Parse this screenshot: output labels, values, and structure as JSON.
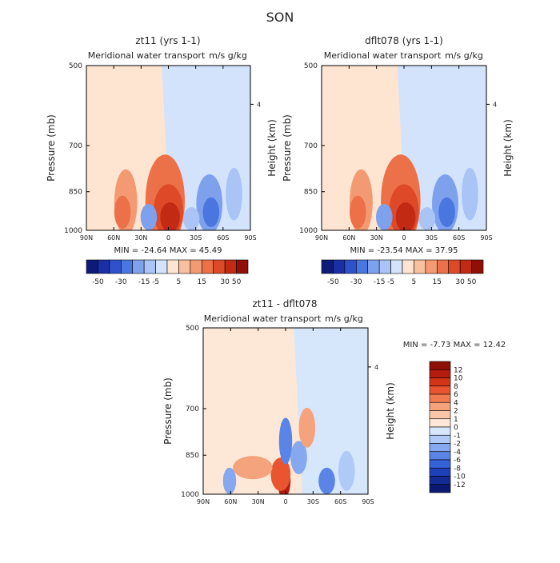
{
  "page_title": "SON",
  "chart_data": [
    {
      "type": "heatmap",
      "title": "zt11 (yrs 1-1)",
      "subtitle": "Meridional water transport",
      "units": "m/s g/kg",
      "xlabel": "",
      "ylabel": "Pressure (mb)",
      "ylabel_right": "Height (km)",
      "x_ticks": [
        "90N",
        "60N",
        "30N",
        "0",
        "30S",
        "60S",
        "90S"
      ],
      "y_ticks": [
        "500",
        "700",
        "850",
        "1000"
      ],
      "right_ticks": [
        "4"
      ],
      "ylim": [
        1000,
        500
      ],
      "stats": "MIN = -24.64   MAX =  45.49",
      "min": -24.64,
      "max": 45.49,
      "colorbar_labels": [
        "-50",
        "-30",
        "-15",
        "-5",
        "5",
        "15",
        "30",
        "50"
      ],
      "colorbar_colors": [
        "#0d1a78",
        "#1a2fa6",
        "#2f52cc",
        "#4a76e0",
        "#7ea1ee",
        "#a9c4f5",
        "#d2e3fb",
        "#fde5d2",
        "#f9c0a0",
        "#f49a73",
        "#ec7048",
        "#de4a28",
        "#c22a14",
        "#8f1008"
      ]
    },
    {
      "type": "heatmap",
      "title": "dflt078 (yrs 1-1)",
      "subtitle": "Meridional water transport",
      "units": "m/s g/kg",
      "xlabel": "",
      "ylabel": "Pressure (mb)",
      "ylabel_right": "Height (km)",
      "x_ticks": [
        "90N",
        "60N",
        "30N",
        "0",
        "30S",
        "60S",
        "90S"
      ],
      "y_ticks": [
        "500",
        "700",
        "850",
        "1000"
      ],
      "right_ticks": [
        "4"
      ],
      "ylim": [
        1000,
        500
      ],
      "stats": "MIN = -23.54   MAX =  37.95",
      "min": -23.54,
      "max": 37.95,
      "colorbar_labels": [
        "-50",
        "-30",
        "-15",
        "-5",
        "5",
        "15",
        "30",
        "50"
      ],
      "colorbar_colors": [
        "#0d1a78",
        "#1a2fa6",
        "#2f52cc",
        "#4a76e0",
        "#7ea1ee",
        "#a9c4f5",
        "#d2e3fb",
        "#fde5d2",
        "#f9c0a0",
        "#f49a73",
        "#ec7048",
        "#de4a28",
        "#c22a14",
        "#8f1008"
      ]
    },
    {
      "type": "heatmap",
      "title": "zt11 - dflt078",
      "subtitle": "Meridional water transport",
      "units": "m/s g/kg",
      "xlabel": "",
      "ylabel": "Pressure (mb)",
      "ylabel_right": "Height (km)",
      "x_ticks": [
        "90N",
        "60N",
        "30N",
        "0",
        "30S",
        "60S",
        "90S"
      ],
      "y_ticks": [
        "500",
        "700",
        "850",
        "1000"
      ],
      "right_ticks": [
        "4"
      ],
      "ylim": [
        1000,
        500
      ],
      "stats": "MIN =   -7.73   MAX =  12.42",
      "min": -7.73,
      "max": 12.42,
      "colorbar_labels": [
        "12",
        "10",
        "8",
        "6",
        "4",
        "2",
        "1",
        "0",
        "-1",
        "-2",
        "-4",
        "-6",
        "-8",
        "-10",
        "-12"
      ],
      "colorbar_colors": [
        "#8f1008",
        "#b51c0e",
        "#d43418",
        "#e85530",
        "#f07a52",
        "#f5a37c",
        "#f9c6aa",
        "#fde8d8",
        "#d6e6fb",
        "#afcaf6",
        "#85a8ef",
        "#5a85e6",
        "#3562d8",
        "#1f40bb",
        "#142b96",
        "#0b1a70"
      ]
    }
  ]
}
